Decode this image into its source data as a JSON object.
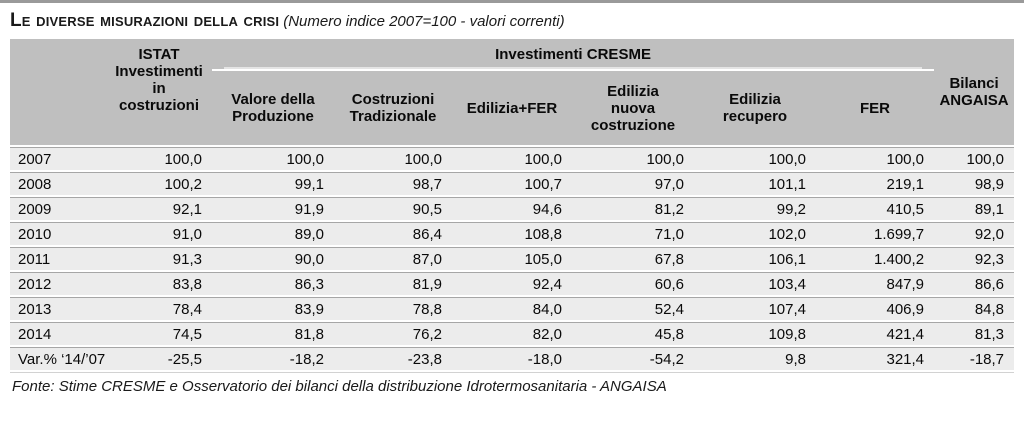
{
  "page": {
    "title": "Le diverse misurazioni della crisi",
    "subtitle": "(Numero indice 2007=100 - valori correnti)",
    "footer": "Fonte: Stime CRESME e Osservatorio dei bilanci della distribuzione Idrotermosanitaria - ANGAISA"
  },
  "table": {
    "istat_group_title": "ISTAT",
    "istat_sub_header": "Investimenti\nin\ncostruzioni",
    "cresme_group_title": "Investimenti CRESME",
    "bilanci_header": "Bilanci\nANGAISA",
    "sub_headers": [
      "Valore della\nProduzione",
      "Costruzioni\nTradizionale",
      "Edilizia+FER",
      "Edilizia\nnuova\ncostruzione",
      "Edilizia\nrecupero",
      "FER"
    ],
    "rows": [
      {
        "label": "2007",
        "values": [
          "100,0",
          "100,0",
          "100,0",
          "100,0",
          "100,0",
          "100,0",
          "100,0",
          "100,0"
        ]
      },
      {
        "label": "2008",
        "values": [
          "100,2",
          "99,1",
          "98,7",
          "100,7",
          "97,0",
          "101,1",
          "219,1",
          "98,9"
        ]
      },
      {
        "label": "2009",
        "values": [
          "92,1",
          "91,9",
          "90,5",
          "94,6",
          "81,2",
          "99,2",
          "410,5",
          "89,1"
        ]
      },
      {
        "label": "2010",
        "values": [
          "91,0",
          "89,0",
          "86,4",
          "108,8",
          "71,0",
          "102,0",
          "1.699,7",
          "92,0"
        ]
      },
      {
        "label": "2011",
        "values": [
          "91,3",
          "90,0",
          "87,0",
          "105,0",
          "67,8",
          "106,1",
          "1.400,2",
          "92,3"
        ]
      },
      {
        "label": "2012",
        "values": [
          "83,8",
          "86,3",
          "81,9",
          "92,4",
          "60,6",
          "103,4",
          "847,9",
          "86,6"
        ]
      },
      {
        "label": "2013",
        "values": [
          "78,4",
          "83,9",
          "78,8",
          "84,0",
          "52,4",
          "107,4",
          "406,9",
          "84,8"
        ]
      },
      {
        "label": "2014",
        "values": [
          "74,5",
          "81,8",
          "76,2",
          "82,0",
          "45,8",
          "109,8",
          "421,4",
          "81,3"
        ]
      },
      {
        "label": "Var.% ‘14/’07",
        "values": [
          "-25,5",
          "-18,2",
          "-23,8",
          "-18,0",
          "-54,2",
          "9,8",
          "321,4",
          "-18,7"
        ]
      }
    ]
  },
  "chart_data": {
    "type": "table",
    "title": "Le diverse misurazioni della crisi (Numero indice 2007=100 - valori correnti)",
    "columns": [
      "ISTAT Investimenti in costruzioni",
      "Valore della Produzione",
      "Costruzioni Tradizionale",
      "Edilizia+FER",
      "Edilizia nuova costruzione",
      "Edilizia recupero",
      "FER",
      "Bilanci ANGAISA"
    ],
    "row_labels": [
      "2007",
      "2008",
      "2009",
      "2010",
      "2011",
      "2012",
      "2013",
      "2014",
      "Var.% '14/'07"
    ],
    "values": [
      [
        100.0,
        100.0,
        100.0,
        100.0,
        100.0,
        100.0,
        100.0,
        100.0
      ],
      [
        100.2,
        99.1,
        98.7,
        100.7,
        97.0,
        101.1,
        219.1,
        98.9
      ],
      [
        92.1,
        91.9,
        90.5,
        94.6,
        81.2,
        99.2,
        410.5,
        89.1
      ],
      [
        91.0,
        89.0,
        86.4,
        108.8,
        71.0,
        102.0,
        1699.7,
        92.0
      ],
      [
        91.3,
        90.0,
        87.0,
        105.0,
        67.8,
        106.1,
        1400.2,
        92.3
      ],
      [
        83.8,
        86.3,
        81.9,
        92.4,
        60.6,
        103.4,
        847.9,
        86.6
      ],
      [
        78.4,
        83.9,
        78.8,
        84.0,
        52.4,
        107.4,
        406.9,
        84.8
      ],
      [
        74.5,
        81.8,
        76.2,
        82.0,
        45.8,
        109.8,
        421.4,
        81.3
      ],
      [
        -25.5,
        -18.2,
        -23.8,
        -18.0,
        -54.2,
        9.8,
        321.4,
        -18.7
      ]
    ],
    "colors": {
      "header_bg": "#bfbfbf",
      "row_bg": "#ececec",
      "separator": "#a6a6a6",
      "text": "#0a0a0a"
    }
  }
}
